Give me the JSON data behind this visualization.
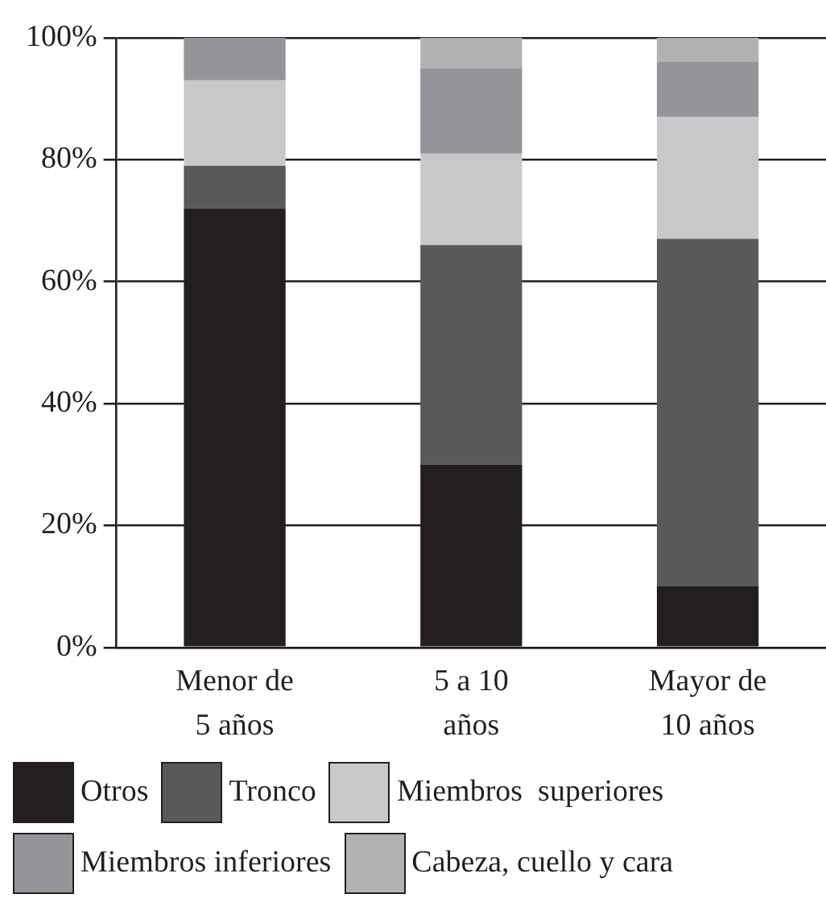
{
  "chart_data": {
    "type": "bar",
    "stacked": true,
    "categories": [
      "Menor de 5 años",
      "5 a 10 años",
      "Mayor de 10 años"
    ],
    "series": [
      {
        "name": "Otros",
        "color": "#231f20",
        "values": [
          72,
          30,
          10
        ]
      },
      {
        "name": "Tronco",
        "color": "#58595b",
        "values": [
          7,
          36,
          57
        ]
      },
      {
        "name": "Miembros  superiores",
        "color": "#c7c8ca",
        "values": [
          14,
          15,
          20
        ]
      },
      {
        "name": "Miembros inferiores",
        "color": "#939598",
        "values": [
          7,
          14,
          9
        ]
      },
      {
        "name": "Cabeza, cuello y cara",
        "color": "#b1b2b4",
        "values": [
          0,
          5,
          4
        ]
      }
    ],
    "ylim": [
      0,
      100
    ],
    "yticks": [
      {
        "value": 0,
        "label": "0%"
      },
      {
        "value": 20,
        "label": "20%"
      },
      {
        "value": 40,
        "label": "40%"
      },
      {
        "value": 60,
        "label": "60%"
      },
      {
        "value": 80,
        "label": "80%"
      },
      {
        "value": 100,
        "label": "100%"
      }
    ],
    "grid": "y",
    "legend": "bottom"
  }
}
